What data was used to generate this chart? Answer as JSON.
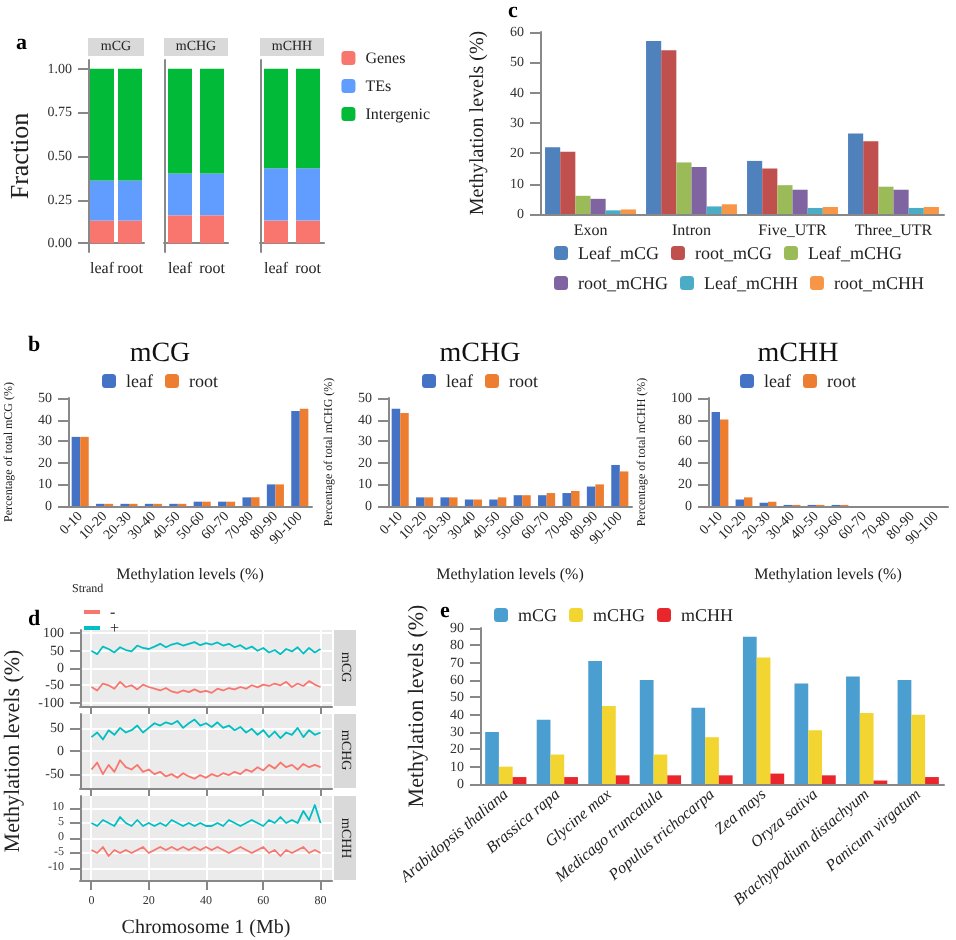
{
  "chart_data": [
    {
      "type": "bar",
      "title": "mCG",
      "ylabel": "Fraction",
      "stacked": true,
      "legend": false,
      "annotations": [
        "a"
      ],
      "categories": [
        "leaf",
        "root"
      ],
      "ylim": [
        -0.05,
        1.05
      ],
      "yticks": [
        {
          "value": 0,
          "label": "0.00"
        },
        {
          "value": 0.25,
          "label": "0.25"
        },
        {
          "value": 0.5,
          "label": "0.50"
        },
        {
          "value": 0.75,
          "label": "0.75"
        },
        {
          "value": 1,
          "label": "1.00"
        }
      ],
      "series": [
        {
          "color": "#f8766d",
          "values": [
            0.13,
            0.13
          ]
        },
        {
          "color": "#619cff",
          "values": [
            0.23,
            0.23
          ]
        },
        {
          "color": "#00ba38",
          "values": [
            0.64,
            0.64
          ]
        }
      ]
    },
    {
      "type": "bar",
      "title": "mCHG",
      "stacked": true,
      "legend": false,
      "tick_labels": "x",
      "categories": [
        "leaf",
        "root"
      ],
      "ylim": [
        -0.05,
        1.05
      ],
      "series": [
        {
          "color": "#f8766d",
          "values": [
            0.16,
            0.16
          ]
        },
        {
          "color": "#619cff",
          "values": [
            0.24,
            0.24
          ]
        },
        {
          "color": "#00ba38",
          "values": [
            0.6,
            0.6
          ]
        }
      ]
    },
    {
      "type": "bar",
      "title": "mCHH",
      "stacked": true,
      "legend": "right",
      "tick_labels": "x",
      "categories": [
        "leaf",
        "root"
      ],
      "ylim": [
        -0.05,
        1.05
      ],
      "series": [
        {
          "name": "Genes",
          "color": "#f8766d",
          "values": [
            0.13,
            0.13
          ]
        },
        {
          "name": "TEs",
          "color": "#619cff",
          "values": [
            0.3,
            0.3
          ]
        },
        {
          "name": "Intergenic",
          "color": "#00ba38",
          "values": [
            0.57,
            0.57
          ]
        }
      ]
    },
    {
      "type": "bar",
      "ylabel": "Methylation levels (%)",
      "legend": "bottom",
      "annotations": [
        "c"
      ],
      "categories": [
        "Exon",
        "Intron",
        "Five_UTR",
        "Three_UTR"
      ],
      "ylim": [
        0,
        60
      ],
      "yticks": [
        0,
        10,
        20,
        30,
        40,
        50,
        60
      ],
      "series": [
        {
          "name": "Leaf_mCG",
          "color": "#4f81bd",
          "values": [
            22,
            57,
            17.5,
            26.5
          ]
        },
        {
          "name": "root_mCG",
          "color": "#c0504d",
          "values": [
            20.5,
            54,
            15,
            24
          ]
        },
        {
          "name": "Leaf_mCHG",
          "color": "#9bbb59",
          "values": [
            6,
            17,
            9.5,
            9
          ]
        },
        {
          "name": "root_mCHG",
          "color": "#8064a2",
          "values": [
            5,
            15.5,
            8,
            8
          ]
        },
        {
          "name": "Leaf_mCHH",
          "color": "#4bacc6",
          "values": [
            1.2,
            2.5,
            2,
            2
          ]
        },
        {
          "name": "root_mCHH",
          "color": "#f79646",
          "values": [
            1.5,
            3.2,
            2.3,
            2.3
          ]
        }
      ]
    },
    {
      "type": "bar",
      "title": "mCG",
      "xlabel": "Methylation levels (%)",
      "ylabel": "Percentage of total mCG (%)",
      "legend": "top",
      "annotations": [
        "b"
      ],
      "categories": [
        "0-10",
        "10-20",
        "20-30",
        "30-40",
        "40-50",
        "50-60",
        "60-70",
        "70-80",
        "80-90",
        "90-100"
      ],
      "ylim": [
        0,
        50
      ],
      "yticks": [
        0,
        10,
        20,
        30,
        40,
        50
      ],
      "series": [
        {
          "name": "leaf",
          "color": "#4472c4",
          "values": [
            32,
            1,
            1,
            1,
            1,
            2,
            2,
            4,
            10,
            44
          ]
        },
        {
          "name": "root",
          "color": "#ed7d31",
          "values": [
            32,
            1,
            1,
            1,
            1,
            2,
            2,
            4,
            10,
            45
          ]
        }
      ]
    },
    {
      "type": "bar",
      "title": "mCHG",
      "xlabel": "Methylation levels (%)",
      "ylabel": "Percentage of total mCHG (%)",
      "legend": "top",
      "categories": [
        "0-10",
        "10-20",
        "20-30",
        "30-40",
        "40-50",
        "50-60",
        "60-70",
        "70-80",
        "80-90",
        "90-100"
      ],
      "ylim": [
        0,
        50
      ],
      "yticks": [
        0,
        10,
        20,
        30,
        40,
        50
      ],
      "series": [
        {
          "name": "leaf",
          "color": "#4472c4",
          "values": [
            45,
            4,
            4,
            3,
            3,
            5,
            5,
            6,
            9,
            19
          ]
        },
        {
          "name": "root",
          "color": "#ed7d31",
          "values": [
            43,
            4,
            4,
            3,
            4,
            5,
            6,
            7,
            10,
            16
          ]
        }
      ]
    },
    {
      "type": "bar",
      "title": "mCHH",
      "xlabel": "Methylation levels (%)",
      "ylabel": "Percentage of total mCHH (%)",
      "legend": "top",
      "categories": [
        "0-10",
        "10-20",
        "20-30",
        "30-40",
        "40-50",
        "50-60",
        "60-70",
        "70-80",
        "80-90",
        "90-100"
      ],
      "ylim": [
        0,
        100
      ],
      "yticks": [
        0,
        20,
        40,
        60,
        80,
        100
      ],
      "series": [
        {
          "name": "leaf",
          "color": "#4472c4",
          "values": [
            87,
            6,
            3,
            1,
            1,
            1,
            0,
            0,
            0,
            0
          ]
        },
        {
          "name": "root",
          "color": "#ed7d31",
          "values": [
            80,
            8,
            4,
            1,
            1,
            1,
            0,
            0,
            0,
            0
          ]
        }
      ]
    },
    {
      "type": "line",
      "title": "mCG",
      "legend": "top left",
      "legend_title": "Strand",
      "annotations": [
        "d"
      ],
      "grid": true,
      "tick_labels": "y",
      "x": [
        0,
        2,
        4,
        6,
        8,
        10,
        12,
        14,
        16,
        18,
        20,
        22,
        24,
        26,
        28,
        30,
        32,
        34,
        36,
        38,
        40,
        42,
        44,
        46,
        48,
        50,
        52,
        54,
        56,
        58,
        60,
        62,
        64,
        66,
        68,
        70,
        72,
        74,
        76,
        78,
        80
      ],
      "xlim": [
        -4,
        84
      ],
      "xticks": [
        0,
        20,
        40,
        60,
        80
      ],
      "ylim": [
        -110,
        110
      ],
      "yticks": [
        -100,
        -50,
        0,
        50,
        100
      ],
      "series": [
        {
          "name": "-",
          "color": "#f8766d",
          "values": [
            -55,
            -65,
            -45,
            -50,
            -60,
            -40,
            -55,
            -50,
            -62,
            -48,
            -55,
            -60,
            -65,
            -58,
            -68,
            -72,
            -65,
            -70,
            -62,
            -70,
            -66,
            -72,
            -60,
            -65,
            -58,
            -62,
            -55,
            -60,
            -50,
            -56,
            -48,
            -52,
            -45,
            -50,
            -40,
            -55,
            -45,
            -52,
            -38,
            -48,
            -55
          ]
        },
        {
          "name": "+",
          "color": "#00bfc4",
          "values": [
            50,
            40,
            62,
            55,
            45,
            60,
            52,
            48,
            65,
            58,
            55,
            62,
            70,
            60,
            68,
            72,
            65,
            70,
            75,
            66,
            72,
            68,
            74,
            65,
            70,
            60,
            66,
            55,
            62,
            50,
            58,
            45,
            52,
            40,
            55,
            48,
            60,
            42,
            58,
            45,
            55
          ]
        }
      ]
    },
    {
      "type": "line",
      "title": "mCHG",
      "ylabel": "Methylation levels (%)",
      "legend": false,
      "grid": true,
      "tick_labels": "y",
      "x": [
        0,
        2,
        4,
        6,
        8,
        10,
        12,
        14,
        16,
        18,
        20,
        22,
        24,
        26,
        28,
        30,
        32,
        34,
        36,
        38,
        40,
        42,
        44,
        46,
        48,
        50,
        52,
        54,
        56,
        58,
        60,
        62,
        64,
        66,
        68,
        70,
        72,
        74,
        76,
        78,
        80
      ],
      "xlim": [
        -4,
        84
      ],
      "xticks": [
        0,
        20,
        40,
        60,
        80
      ],
      "ylim": [
        -80,
        80
      ],
      "yticks": [
        -50,
        0,
        50
      ],
      "series": [
        {
          "color": "#f8766d",
          "values": [
            -40,
            -25,
            -50,
            -30,
            -45,
            -20,
            -35,
            -40,
            -30,
            -45,
            -40,
            -50,
            -45,
            -55,
            -50,
            -58,
            -48,
            -55,
            -60,
            -52,
            -58,
            -50,
            -55,
            -48,
            -52,
            -45,
            -50,
            -40,
            -45,
            -35,
            -42,
            -30,
            -38,
            -25,
            -35,
            -30,
            -40,
            -28,
            -35,
            -30,
            -35
          ]
        },
        {
          "color": "#00bfc4",
          "values": [
            30,
            40,
            25,
            45,
            35,
            50,
            40,
            45,
            55,
            40,
            50,
            60,
            55,
            62,
            58,
            65,
            50,
            60,
            68,
            55,
            60,
            52,
            62,
            50,
            55,
            45,
            52,
            40,
            48,
            35,
            45,
            30,
            42,
            28,
            40,
            35,
            50,
            30,
            45,
            35,
            40
          ]
        }
      ]
    },
    {
      "type": "line",
      "title": "mCHH",
      "xlabel": "Chromosome 1 (Mb)",
      "legend": false,
      "grid": true,
      "x": [
        0,
        2,
        4,
        6,
        8,
        10,
        12,
        14,
        16,
        18,
        20,
        22,
        24,
        26,
        28,
        30,
        32,
        34,
        36,
        38,
        40,
        42,
        44,
        46,
        48,
        50,
        52,
        54,
        56,
        58,
        60,
        62,
        64,
        66,
        68,
        70,
        72,
        74,
        76,
        78,
        80
      ],
      "xlim": [
        -4,
        84
      ],
      "xticks": [
        0,
        20,
        40,
        60,
        80
      ],
      "ylim": [
        -14,
        14
      ],
      "yticks": [
        -10,
        -5,
        0,
        5,
        10
      ],
      "series": [
        {
          "color": "#f8766d",
          "values": [
            -4,
            -5,
            -3,
            -6,
            -4,
            -5,
            -4,
            -5,
            -4,
            -3,
            -5,
            -4,
            -3,
            -4,
            -3,
            -4,
            -3,
            -4,
            -3,
            -4,
            -3,
            -4,
            -3,
            -4,
            -5,
            -4,
            -3,
            -4,
            -5,
            -4,
            -3,
            -5,
            -4,
            -6,
            -4,
            -5,
            -4,
            -3,
            -5,
            -4,
            -5
          ]
        },
        {
          "color": "#00bfc4",
          "values": [
            5,
            4,
            6,
            5,
            4,
            7,
            5,
            4,
            6,
            4,
            5,
            4,
            5,
            4,
            6,
            5,
            4,
            5,
            4,
            5,
            4,
            4,
            5,
            4,
            6,
            5,
            4,
            5,
            6,
            5,
            4,
            6,
            5,
            7,
            5,
            6,
            5,
            9,
            6,
            11,
            5
          ]
        }
      ]
    },
    {
      "type": "bar",
      "ylabel": "Methylation levels (%)",
      "legend": "top",
      "annotations": [
        "e"
      ],
      "categories": [
        "Arabidopsis thaliana",
        "Brassica rapa",
        "Glycine max",
        "Medicago truncatula",
        "Populus trichocarpa",
        "Zea mays",
        "Oryza sativa",
        "Brachypodium distachyum",
        "Panicum virgatum"
      ],
      "ylim": [
        0,
        90
      ],
      "yticks": [
        0,
        10,
        20,
        30,
        40,
        50,
        60,
        70,
        80,
        90
      ],
      "series": [
        {
          "name": "mCG",
          "color": "#4a9fd0",
          "values": [
            30,
            37,
            71,
            60,
            44,
            85,
            58,
            62,
            60
          ]
        },
        {
          "name": "mCHG",
          "color": "#f2d531",
          "values": [
            10,
            17,
            45,
            17,
            27,
            73,
            31,
            41,
            40
          ]
        },
        {
          "name": "mCHH",
          "color": "#e8262b",
          "values": [
            4,
            4,
            5,
            5,
            5,
            6,
            5,
            2,
            4
          ]
        }
      ]
    }
  ]
}
